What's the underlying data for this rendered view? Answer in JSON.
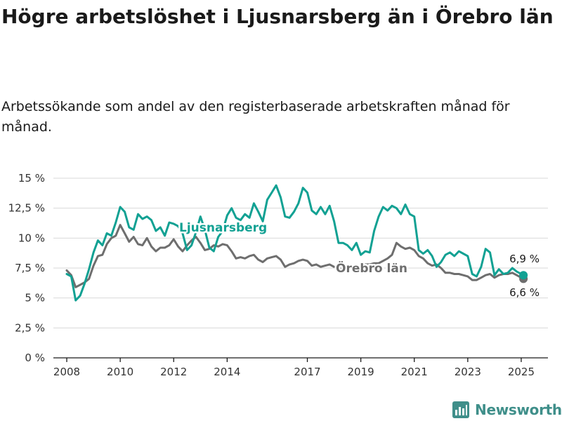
{
  "title": "Högre arbetslöshet i Ljusnarsberg än i Örebro län",
  "subtitle": "Arbetssökande som andel av den registerbaserade arbetskraften månad för månad.",
  "brand": {
    "name": "Newsworthy",
    "icon": "bar-chart-logo-icon"
  },
  "colors": {
    "ljusnarsberg": "#12a193",
    "orebro": "#6e6e6e",
    "grid": "#d9d9d9",
    "axis": "#1a1a1a"
  },
  "chart_data": {
    "type": "line",
    "title": "Högre arbetslöshet i Ljusnarsberg än i Örebro län",
    "subtitle": "Arbetssökande som andel av den registerbaserade arbetskraften månad för månad.",
    "unit": "%",
    "xlim": [
      "2007-07",
      "2026-01"
    ],
    "ylim": [
      0,
      15
    ],
    "x_ticks": [
      "2008",
      "2010",
      "2012",
      "2014",
      "2017",
      "2019",
      "2021",
      "2023",
      "2025"
    ],
    "y_ticks": [
      "0 %",
      "2,5 %",
      "5 %",
      "7,5 %",
      "10 %",
      "12,5 %",
      "15 %"
    ],
    "grid": "horizontal",
    "legend": "direct labels on lines",
    "series": [
      {
        "name": "Ljusnarsberg",
        "end_label": "6,9 %",
        "points": [
          [
            "2008-01",
            7.0
          ],
          [
            "2008-03",
            6.8
          ],
          [
            "2008-05",
            4.8
          ],
          [
            "2008-07",
            5.2
          ],
          [
            "2008-09",
            6.2
          ],
          [
            "2008-11",
            7.4
          ],
          [
            "2009-01",
            8.8
          ],
          [
            "2009-03",
            9.8
          ],
          [
            "2009-05",
            9.4
          ],
          [
            "2009-07",
            10.4
          ],
          [
            "2009-09",
            10.2
          ],
          [
            "2009-11",
            11.3
          ],
          [
            "2010-01",
            12.6
          ],
          [
            "2010-03",
            12.2
          ],
          [
            "2010-05",
            10.9
          ],
          [
            "2010-07",
            10.7
          ],
          [
            "2010-09",
            12.0
          ],
          [
            "2010-11",
            11.6
          ],
          [
            "2011-01",
            11.8
          ],
          [
            "2011-03",
            11.5
          ],
          [
            "2011-05",
            10.6
          ],
          [
            "2011-07",
            10.9
          ],
          [
            "2011-09",
            10.2
          ],
          [
            "2011-11",
            11.3
          ],
          [
            "2012-01",
            11.2
          ],
          [
            "2012-03",
            11.0
          ],
          [
            "2012-05",
            10.4
          ],
          [
            "2012-07",
            9.0
          ],
          [
            "2012-09",
            9.4
          ],
          [
            "2012-11",
            10.5
          ],
          [
            "2013-01",
            11.8
          ],
          [
            "2013-03",
            10.7
          ],
          [
            "2013-05",
            9.2
          ],
          [
            "2013-07",
            8.9
          ],
          [
            "2013-09",
            10.1
          ],
          [
            "2013-11",
            10.6
          ],
          [
            "2014-01",
            11.9
          ],
          [
            "2014-03",
            12.5
          ],
          [
            "2014-05",
            11.7
          ],
          [
            "2014-07",
            11.5
          ],
          [
            "2014-09",
            12.0
          ],
          [
            "2014-11",
            11.7
          ],
          [
            "2015-01",
            12.9
          ],
          [
            "2015-03",
            12.2
          ],
          [
            "2015-05",
            11.4
          ],
          [
            "2015-07",
            13.2
          ],
          [
            "2015-09",
            13.8
          ],
          [
            "2015-11",
            14.4
          ],
          [
            "2016-01",
            13.4
          ],
          [
            "2016-03",
            11.8
          ],
          [
            "2016-05",
            11.7
          ],
          [
            "2016-07",
            12.2
          ],
          [
            "2016-09",
            12.9
          ],
          [
            "2016-11",
            14.2
          ],
          [
            "2017-01",
            13.8
          ],
          [
            "2017-03",
            12.3
          ],
          [
            "2017-05",
            12.0
          ],
          [
            "2017-07",
            12.6
          ],
          [
            "2017-09",
            12.0
          ],
          [
            "2017-11",
            12.7
          ],
          [
            "2018-01",
            11.4
          ],
          [
            "2018-03",
            9.6
          ],
          [
            "2018-05",
            9.6
          ],
          [
            "2018-07",
            9.4
          ],
          [
            "2018-09",
            9.0
          ],
          [
            "2018-11",
            9.6
          ],
          [
            "2019-01",
            8.6
          ],
          [
            "2019-03",
            8.9
          ],
          [
            "2019-05",
            8.8
          ],
          [
            "2019-07",
            10.6
          ],
          [
            "2019-09",
            11.8
          ],
          [
            "2019-11",
            12.6
          ],
          [
            "2020-01",
            12.3
          ],
          [
            "2020-03",
            12.7
          ],
          [
            "2020-05",
            12.5
          ],
          [
            "2020-07",
            12.0
          ],
          [
            "2020-09",
            12.8
          ],
          [
            "2020-11",
            12.0
          ],
          [
            "2021-01",
            11.8
          ],
          [
            "2021-03",
            9.0
          ],
          [
            "2021-05",
            8.7
          ],
          [
            "2021-07",
            9.0
          ],
          [
            "2021-09",
            8.5
          ],
          [
            "2021-11",
            7.6
          ],
          [
            "2022-01",
            8.0
          ],
          [
            "2022-03",
            8.6
          ],
          [
            "2022-05",
            8.8
          ],
          [
            "2022-07",
            8.5
          ],
          [
            "2022-09",
            8.9
          ],
          [
            "2022-11",
            8.7
          ],
          [
            "2023-01",
            8.5
          ],
          [
            "2023-03",
            7.0
          ],
          [
            "2023-05",
            6.8
          ],
          [
            "2023-07",
            7.6
          ],
          [
            "2023-09",
            9.1
          ],
          [
            "2023-11",
            8.8
          ],
          [
            "2024-01",
            6.9
          ],
          [
            "2024-03",
            7.4
          ],
          [
            "2024-05",
            7.0
          ],
          [
            "2024-07",
            7.1
          ],
          [
            "2024-09",
            7.5
          ],
          [
            "2024-11",
            7.2
          ],
          [
            "2025-02",
            6.9
          ]
        ]
      },
      {
        "name": "Örebro län",
        "end_label": "6,6 %",
        "points": [
          [
            "2008-01",
            7.3
          ],
          [
            "2008-03",
            6.9
          ],
          [
            "2008-05",
            5.9
          ],
          [
            "2008-07",
            6.1
          ],
          [
            "2008-09",
            6.3
          ],
          [
            "2008-11",
            6.6
          ],
          [
            "2009-01",
            7.7
          ],
          [
            "2009-03",
            8.5
          ],
          [
            "2009-05",
            8.6
          ],
          [
            "2009-07",
            9.5
          ],
          [
            "2009-09",
            10.0
          ],
          [
            "2009-11",
            10.2
          ],
          [
            "2010-01",
            11.1
          ],
          [
            "2010-03",
            10.4
          ],
          [
            "2010-05",
            9.7
          ],
          [
            "2010-07",
            10.1
          ],
          [
            "2010-09",
            9.5
          ],
          [
            "2010-11",
            9.4
          ],
          [
            "2011-01",
            10.0
          ],
          [
            "2011-03",
            9.3
          ],
          [
            "2011-05",
            8.9
          ],
          [
            "2011-07",
            9.2
          ],
          [
            "2011-09",
            9.2
          ],
          [
            "2011-11",
            9.4
          ],
          [
            "2012-01",
            9.9
          ],
          [
            "2012-03",
            9.3
          ],
          [
            "2012-05",
            8.9
          ],
          [
            "2012-07",
            9.4
          ],
          [
            "2012-09",
            9.8
          ],
          [
            "2012-11",
            10.1
          ],
          [
            "2013-01",
            9.6
          ],
          [
            "2013-03",
            9.0
          ],
          [
            "2013-05",
            9.1
          ],
          [
            "2013-07",
            9.4
          ],
          [
            "2013-09",
            9.3
          ],
          [
            "2013-11",
            9.5
          ],
          [
            "2014-01",
            9.4
          ],
          [
            "2014-03",
            8.9
          ],
          [
            "2014-05",
            8.3
          ],
          [
            "2014-07",
            8.4
          ],
          [
            "2014-09",
            8.3
          ],
          [
            "2014-11",
            8.5
          ],
          [
            "2015-01",
            8.6
          ],
          [
            "2015-03",
            8.2
          ],
          [
            "2015-05",
            8.0
          ],
          [
            "2015-07",
            8.3
          ],
          [
            "2015-09",
            8.4
          ],
          [
            "2015-11",
            8.5
          ],
          [
            "2016-01",
            8.2
          ],
          [
            "2016-03",
            7.6
          ],
          [
            "2016-05",
            7.8
          ],
          [
            "2016-07",
            7.9
          ],
          [
            "2016-09",
            8.1
          ],
          [
            "2016-11",
            8.2
          ],
          [
            "2017-01",
            8.1
          ],
          [
            "2017-03",
            7.7
          ],
          [
            "2017-05",
            7.8
          ],
          [
            "2017-07",
            7.6
          ],
          [
            "2017-09",
            7.7
          ],
          [
            "2017-11",
            7.8
          ],
          [
            "2018-01",
            7.6
          ],
          [
            "2018-03",
            7.5
          ],
          [
            "2018-05",
            7.4
          ],
          [
            "2018-07",
            7.4
          ],
          [
            "2018-09",
            7.5
          ],
          [
            "2018-11",
            7.6
          ],
          [
            "2019-01",
            7.7
          ],
          [
            "2019-03",
            7.8
          ],
          [
            "2019-05",
            7.8
          ],
          [
            "2019-07",
            7.9
          ],
          [
            "2019-09",
            7.9
          ],
          [
            "2019-11",
            8.1
          ],
          [
            "2020-01",
            8.3
          ],
          [
            "2020-03",
            8.6
          ],
          [
            "2020-05",
            9.6
          ],
          [
            "2020-07",
            9.3
          ],
          [
            "2020-09",
            9.1
          ],
          [
            "2020-11",
            9.2
          ],
          [
            "2021-01",
            9.0
          ],
          [
            "2021-03",
            8.5
          ],
          [
            "2021-05",
            8.3
          ],
          [
            "2021-07",
            7.9
          ],
          [
            "2021-09",
            7.7
          ],
          [
            "2021-11",
            7.8
          ],
          [
            "2022-01",
            7.5
          ],
          [
            "2022-03",
            7.1
          ],
          [
            "2022-05",
            7.1
          ],
          [
            "2022-07",
            7.0
          ],
          [
            "2022-09",
            7.0
          ],
          [
            "2022-11",
            6.9
          ],
          [
            "2023-01",
            6.8
          ],
          [
            "2023-03",
            6.5
          ],
          [
            "2023-05",
            6.5
          ],
          [
            "2023-07",
            6.7
          ],
          [
            "2023-09",
            6.9
          ],
          [
            "2023-11",
            7.0
          ],
          [
            "2024-01",
            6.7
          ],
          [
            "2024-03",
            6.9
          ],
          [
            "2024-05",
            7.0
          ],
          [
            "2024-07",
            7.0
          ],
          [
            "2024-09",
            7.1
          ],
          [
            "2024-11",
            6.9
          ],
          [
            "2025-02",
            6.6
          ]
        ]
      }
    ]
  }
}
